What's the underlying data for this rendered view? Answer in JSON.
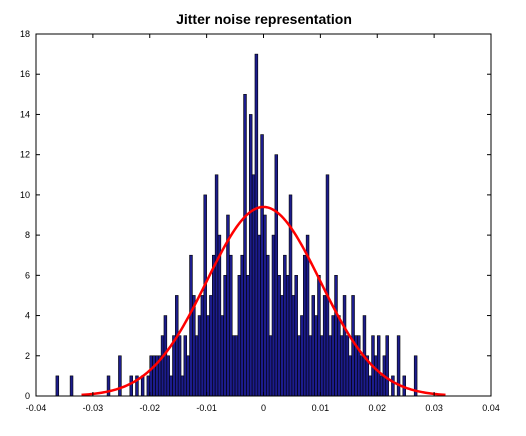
{
  "chart_data": {
    "type": "bar",
    "title": "Jitter noise representation",
    "xlabel": "",
    "ylabel": "",
    "xlim": [
      -0.04,
      0.04
    ],
    "ylim": [
      0,
      18
    ],
    "xticks": [
      "-0.04",
      "-0.03",
      "-0.02",
      "-0.01",
      "0",
      "0.01",
      "0.02",
      "0.03",
      "0.04"
    ],
    "yticks": [
      "0",
      "2",
      "4",
      "6",
      "8",
      "10",
      "12",
      "14",
      "16",
      "18"
    ],
    "grid": false,
    "bin_width": 0.0005,
    "bar_fill": "#1c1c8c",
    "bar_edge": "#000000",
    "bins": [
      {
        "x": -0.0365,
        "v": 1
      },
      {
        "x": -0.034,
        "v": 1
      },
      {
        "x": -0.0275,
        "v": 1
      },
      {
        "x": -0.0255,
        "v": 2
      },
      {
        "x": -0.0235,
        "v": 1
      },
      {
        "x": -0.0225,
        "v": 1
      },
      {
        "x": -0.0215,
        "v": 1
      },
      {
        "x": -0.0205,
        "v": 1
      },
      {
        "x": -0.02,
        "v": 2
      },
      {
        "x": -0.0195,
        "v": 2
      },
      {
        "x": -0.019,
        "v": 2
      },
      {
        "x": -0.0185,
        "v": 2
      },
      {
        "x": -0.018,
        "v": 3
      },
      {
        "x": -0.0175,
        "v": 4
      },
      {
        "x": -0.017,
        "v": 2
      },
      {
        "x": -0.0165,
        "v": 1
      },
      {
        "x": -0.016,
        "v": 3
      },
      {
        "x": -0.0155,
        "v": 5
      },
      {
        "x": -0.015,
        "v": 3
      },
      {
        "x": -0.0145,
        "v": 1
      },
      {
        "x": -0.014,
        "v": 3
      },
      {
        "x": -0.0135,
        "v": 2
      },
      {
        "x": -0.013,
        "v": 7
      },
      {
        "x": -0.0125,
        "v": 5
      },
      {
        "x": -0.012,
        "v": 3
      },
      {
        "x": -0.0115,
        "v": 4
      },
      {
        "x": -0.011,
        "v": 5
      },
      {
        "x": -0.0105,
        "v": 10
      },
      {
        "x": -0.01,
        "v": 4
      },
      {
        "x": -0.0095,
        "v": 5
      },
      {
        "x": -0.009,
        "v": 7
      },
      {
        "x": -0.0085,
        "v": 11
      },
      {
        "x": -0.008,
        "v": 8
      },
      {
        "x": -0.0075,
        "v": 4
      },
      {
        "x": -0.007,
        "v": 6
      },
      {
        "x": -0.0065,
        "v": 9
      },
      {
        "x": -0.006,
        "v": 7
      },
      {
        "x": -0.0055,
        "v": 3
      },
      {
        "x": -0.005,
        "v": 3
      },
      {
        "x": -0.0045,
        "v": 6
      },
      {
        "x": -0.004,
        "v": 7
      },
      {
        "x": -0.0035,
        "v": 15
      },
      {
        "x": -0.003,
        "v": 6
      },
      {
        "x": -0.0025,
        "v": 14
      },
      {
        "x": -0.002,
        "v": 11
      },
      {
        "x": -0.0015,
        "v": 17
      },
      {
        "x": -0.001,
        "v": 8
      },
      {
        "x": -0.0005,
        "v": 13
      },
      {
        "x": 0.0,
        "v": 9
      },
      {
        "x": 0.0005,
        "v": 7
      },
      {
        "x": 0.001,
        "v": 3
      },
      {
        "x": 0.0015,
        "v": 8
      },
      {
        "x": 0.002,
        "v": 12
      },
      {
        "x": 0.0025,
        "v": 6
      },
      {
        "x": 0.003,
        "v": 5
      },
      {
        "x": 0.0035,
        "v": 7
      },
      {
        "x": 0.004,
        "v": 6
      },
      {
        "x": 0.0045,
        "v": 10
      },
      {
        "x": 0.005,
        "v": 5
      },
      {
        "x": 0.0055,
        "v": 6
      },
      {
        "x": 0.006,
        "v": 3
      },
      {
        "x": 0.0065,
        "v": 4
      },
      {
        "x": 0.007,
        "v": 7
      },
      {
        "x": 0.0075,
        "v": 8
      },
      {
        "x": 0.008,
        "v": 3
      },
      {
        "x": 0.0085,
        "v": 5
      },
      {
        "x": 0.009,
        "v": 4
      },
      {
        "x": 0.0095,
        "v": 6
      },
      {
        "x": 0.01,
        "v": 3
      },
      {
        "x": 0.0105,
        "v": 5
      },
      {
        "x": 0.011,
        "v": 11
      },
      {
        "x": 0.0115,
        "v": 3
      },
      {
        "x": 0.012,
        "v": 4
      },
      {
        "x": 0.0125,
        "v": 6
      },
      {
        "x": 0.013,
        "v": 4
      },
      {
        "x": 0.0135,
        "v": 3
      },
      {
        "x": 0.014,
        "v": 5
      },
      {
        "x": 0.0145,
        "v": 3
      },
      {
        "x": 0.015,
        "v": 2
      },
      {
        "x": 0.0155,
        "v": 5
      },
      {
        "x": 0.016,
        "v": 3
      },
      {
        "x": 0.0165,
        "v": 3
      },
      {
        "x": 0.017,
        "v": 2
      },
      {
        "x": 0.0175,
        "v": 4
      },
      {
        "x": 0.018,
        "v": 2
      },
      {
        "x": 0.0185,
        "v": 1
      },
      {
        "x": 0.019,
        "v": 3
      },
      {
        "x": 0.0195,
        "v": 2
      },
      {
        "x": 0.02,
        "v": 3
      },
      {
        "x": 0.0205,
        "v": 1
      },
      {
        "x": 0.021,
        "v": 2
      },
      {
        "x": 0.0215,
        "v": 3
      },
      {
        "x": 0.0225,
        "v": 1
      },
      {
        "x": 0.0235,
        "v": 3
      },
      {
        "x": 0.0245,
        "v": 1
      },
      {
        "x": 0.0265,
        "v": 2
      }
    ],
    "fit_curve": {
      "type": "gaussian",
      "color": "#ff0000",
      "mean": 0.0,
      "std": 0.01,
      "peak": 9.4,
      "x_range": [
        -0.032,
        0.032
      ]
    }
  }
}
